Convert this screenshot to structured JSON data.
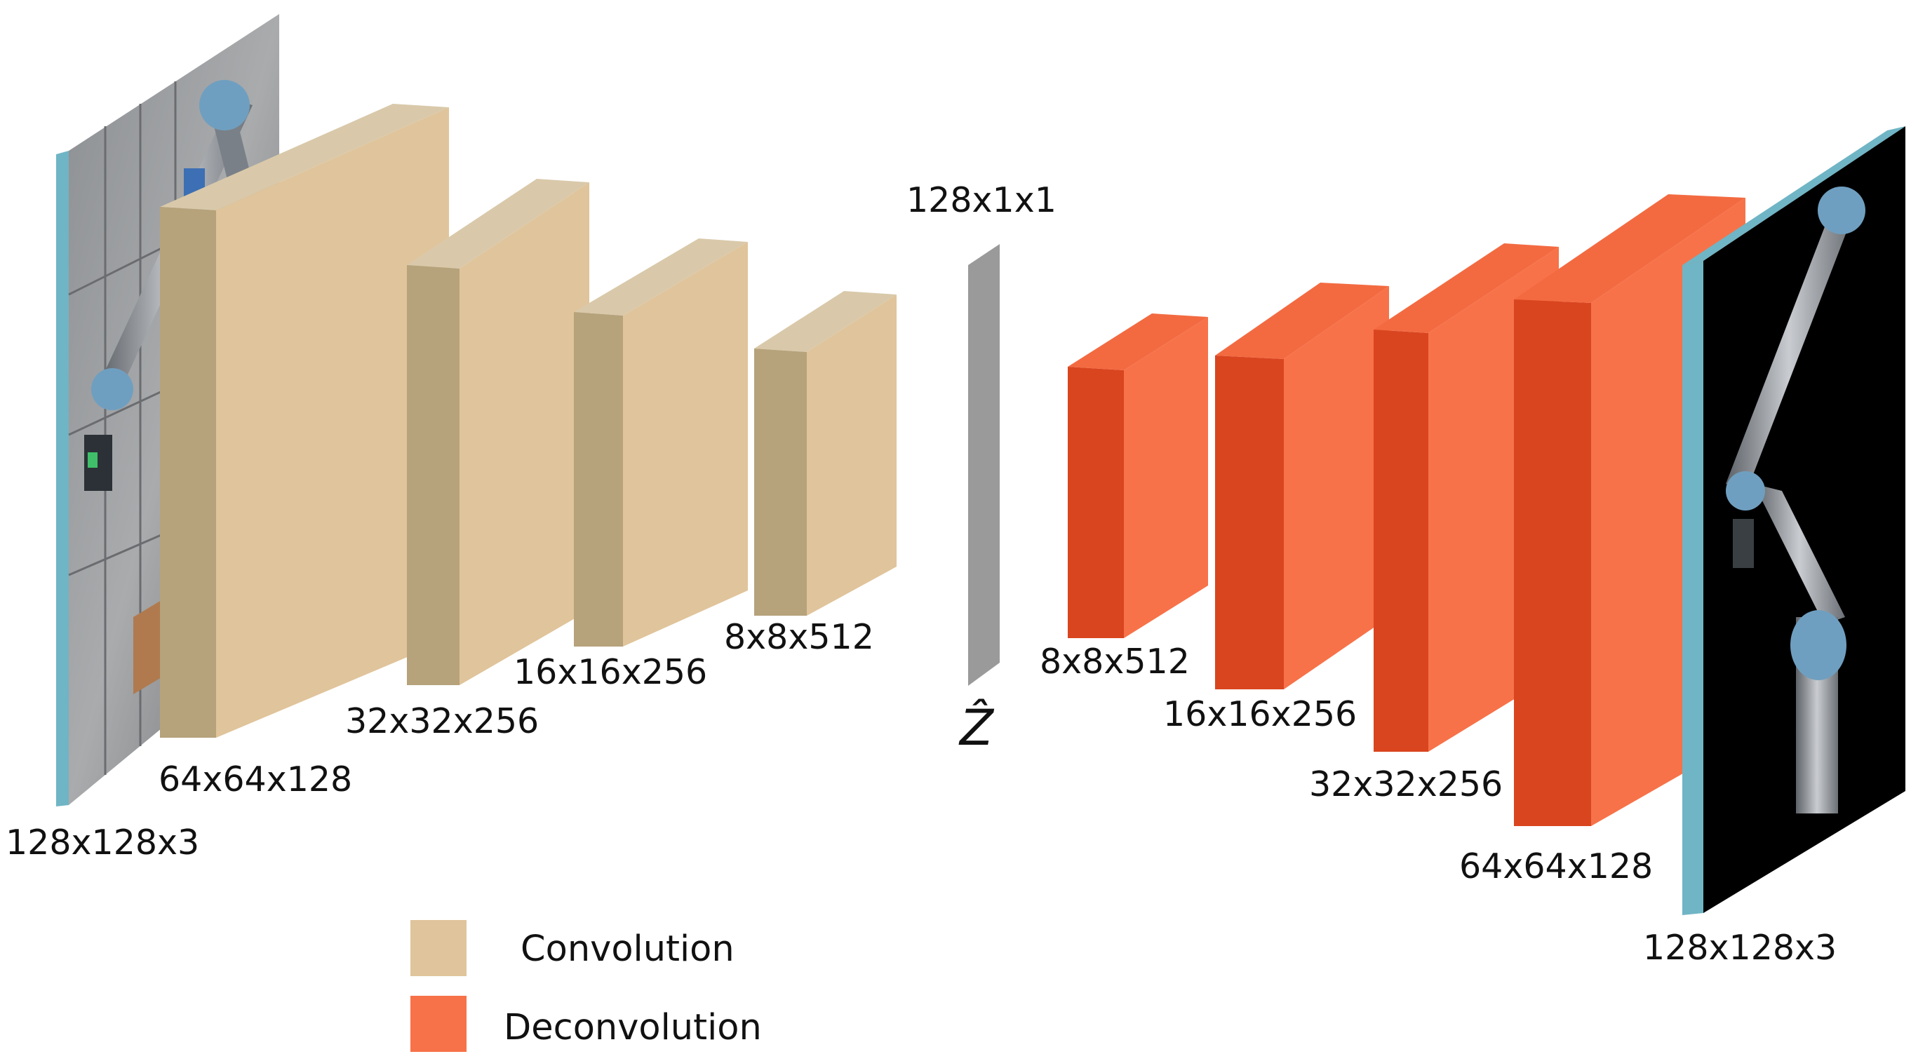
{
  "encoder": {
    "input_label": "128x128x3",
    "layers": [
      {
        "label": "64x64x128"
      },
      {
        "label": "32x32x256"
      },
      {
        "label": "16x16x256"
      },
      {
        "label": "8x8x512"
      }
    ]
  },
  "latent": {
    "size_label": "128x1x1",
    "symbol": "Ẑ"
  },
  "decoder": {
    "layers": [
      {
        "label": "8x8x512"
      },
      {
        "label": "16x16x256"
      },
      {
        "label": "32x32x256"
      },
      {
        "label": "64x64x128"
      }
    ],
    "output_label": "128x128x3"
  },
  "legend": {
    "items": [
      {
        "label": "Convolution",
        "color": "#e0c49b"
      },
      {
        "label": "Deconvolution",
        "color": "#f77249"
      }
    ]
  },
  "colors": {
    "conv_front": "#b6a27b",
    "conv_side": "#e0c49b",
    "conv_top": "#d9c9aa",
    "deconv_front": "#d9451f",
    "deconv_side": "#f77249",
    "deconv_top": "#f36a41",
    "image_frame": "#6fb5c5",
    "latent": "#9a9a9a"
  }
}
